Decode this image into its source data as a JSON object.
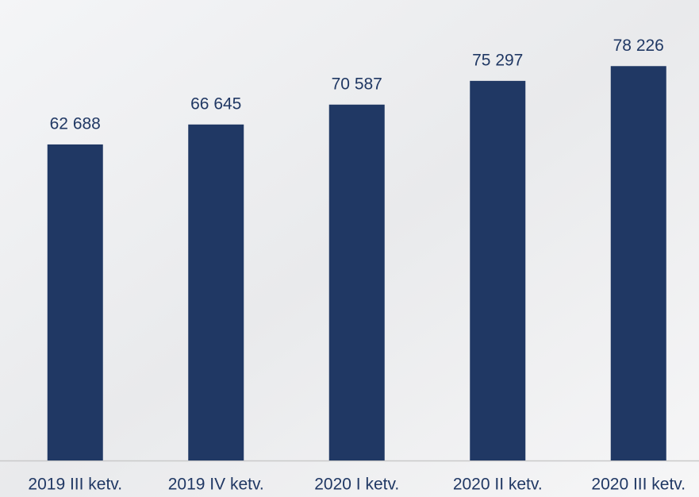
{
  "chart_data": {
    "type": "bar",
    "categories": [
      "2019 III ketv.",
      "2019 IV ketv.",
      "2020 I ketv.",
      "2020 II ketv.",
      "2020 III ketv."
    ],
    "values": [
      62688,
      66645,
      70587,
      75297,
      78226
    ],
    "value_labels": [
      "62 688",
      "66 645",
      "70 587",
      "75 297",
      "78 226"
    ],
    "color": "#203864",
    "ylim": [
      0,
      80000
    ]
  }
}
